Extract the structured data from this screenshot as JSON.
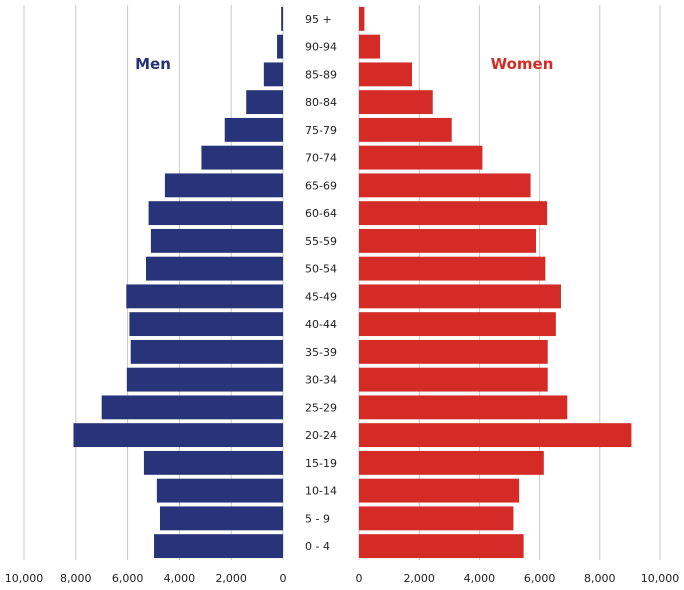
{
  "chart_data": {
    "type": "bar",
    "orientation": "horizontal",
    "subtype": "population-pyramid",
    "categories": [
      "95 +",
      "90-94",
      "85-89",
      "80-84",
      "75-79",
      "70-74",
      "65-69",
      "60-64",
      "55-59",
      "50-54",
      "45-49",
      "40-44",
      "35-39",
      "30-34",
      "25-29",
      "20-24",
      "15-19",
      "10-14",
      "5 - 9",
      "0 - 4"
    ],
    "series": [
      {
        "name": "Men",
        "color": "#283479",
        "values": [
          70,
          230,
          740,
          1420,
          2250,
          3150,
          4560,
          5190,
          5100,
          5290,
          6050,
          5930,
          5880,
          6030,
          7000,
          8090,
          5370,
          4870,
          4750,
          4980
        ]
      },
      {
        "name": "Women",
        "color": "#d42b26",
        "values": [
          180,
          700,
          1760,
          2450,
          3080,
          4100,
          5700,
          6250,
          5880,
          6190,
          6710,
          6540,
          6270,
          6270,
          6920,
          9050,
          6140,
          5320,
          5130,
          5470
        ]
      }
    ],
    "xlim_left": [
      10000,
      0
    ],
    "xlim_right": [
      0,
      10000
    ],
    "left_ticks": [
      "10,000",
      "8,000",
      "6,000",
      "4,000",
      "2,000",
      "0"
    ],
    "right_ticks": [
      "0",
      "2,000",
      "4,000",
      "6,000",
      "8,000",
      "10,000"
    ],
    "grid": true,
    "legend_placement": "labels inside plot, top"
  }
}
